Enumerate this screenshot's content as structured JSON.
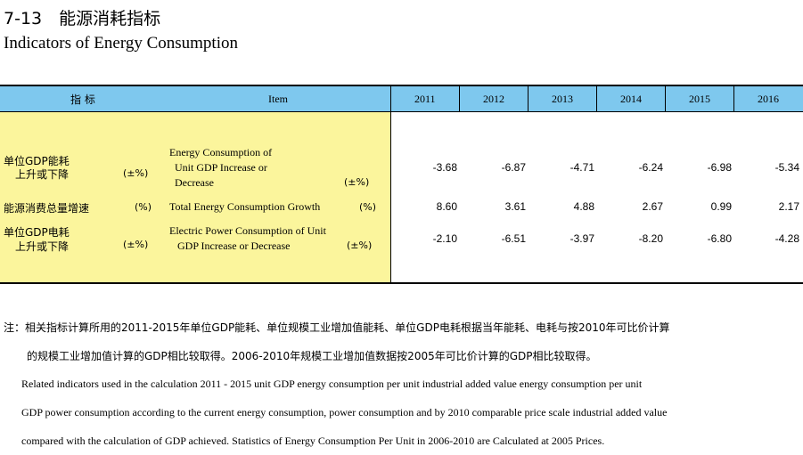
{
  "title": {
    "cn": "7-13　能源消耗指标",
    "en": "Indicators of Energy Consumption"
  },
  "table": {
    "header": {
      "indicator_cn": "指 标",
      "item_en": "Item",
      "years": [
        "2011",
        "2012",
        "2013",
        "2014",
        "2015",
        "2016"
      ]
    },
    "rows": [
      {
        "cn_line1": "单位GDP能耗",
        "cn_line2": "上升或下降",
        "cn_unit": "(±%)",
        "en_line1": "Energy Consumption of",
        "en_line2": "Unit GDP Increase or",
        "en_line3": "Decrease",
        "en_unit": "(±%)",
        "values": [
          "-3.68",
          "-6.87",
          "-4.71",
          "-6.24",
          "-6.98",
          "-5.34"
        ]
      },
      {
        "cn_line1": "能源消费总量增速",
        "cn_unit": "(%)",
        "en_line1": "Total Energy Consumption Growth",
        "en_unit": "(%)",
        "values": [
          "8.60",
          "3.61",
          "4.88",
          "2.67",
          "0.99",
          "2.17"
        ]
      },
      {
        "cn_line1": "单位GDP电耗",
        "cn_line2": "上升或下降",
        "cn_unit": "(±%)",
        "en_line1": "Electric Power Consumption of Unit",
        "en_line2": "GDP Increase or Decrease",
        "en_unit": "(±%)",
        "values": [
          "-2.10",
          "-6.51",
          "-3.97",
          "-8.20",
          "-6.80",
          "-4.28"
        ]
      }
    ]
  },
  "notes": {
    "cn_line1": "注：相关指标计算所用的2011-2015年单位GDP能耗、单位规模工业增加值能耗、单位GDP电耗根据当年能耗、电耗与按2010年可比价计算",
    "cn_line2": "的规模工业增加值计算的GDP相比较取得。2006-2010年规模工业增加值数据按2005年可比价计算的GDP相比较取得。",
    "en_line1": "Related indicators used in the calculation 2011 - 2015 unit GDP energy consumption per unit industrial added value energy consumption per unit",
    "en_line2": "GDP power consumption according to the current energy consumption, power consumption and by 2010 comparable price scale industrial added value",
    "en_line3": "compared with the calculation of GDP achieved. Statistics of Energy Consumption Per Unit in 2006-2010 are Calculated at 2005 Prices."
  },
  "colors": {
    "header_band": "#7ec8ee",
    "stub_background": "#fbf59c"
  }
}
